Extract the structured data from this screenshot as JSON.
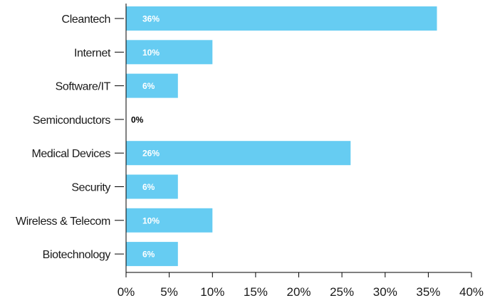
{
  "chart_data": {
    "type": "bar",
    "orientation": "horizontal",
    "categories": [
      "Cleantech",
      "Internet",
      "Software/IT",
      "Semiconductors",
      "Medical Devices",
      "Security",
      "Wireless & Telecom",
      "Biotechnology"
    ],
    "values": [
      36,
      10,
      6,
      0,
      26,
      6,
      10,
      6
    ],
    "value_labels": [
      "36%",
      "10%",
      "6%",
      "0%",
      "26%",
      "6%",
      "10%",
      "6%"
    ],
    "x_ticks": [
      "0%",
      "5%",
      "10%",
      "15%",
      "20%",
      "25%",
      "30%",
      "35%",
      "40%"
    ],
    "xlim": [
      0,
      40
    ],
    "title": "",
    "xlabel": "",
    "ylabel": "",
    "grid": false,
    "legend": "none",
    "colors": {
      "bar": "#66ccf2",
      "label_on_bar": "#ffffff",
      "label_outside": "#000000",
      "axis": "#000000",
      "text": "#1a1a1a"
    }
  }
}
